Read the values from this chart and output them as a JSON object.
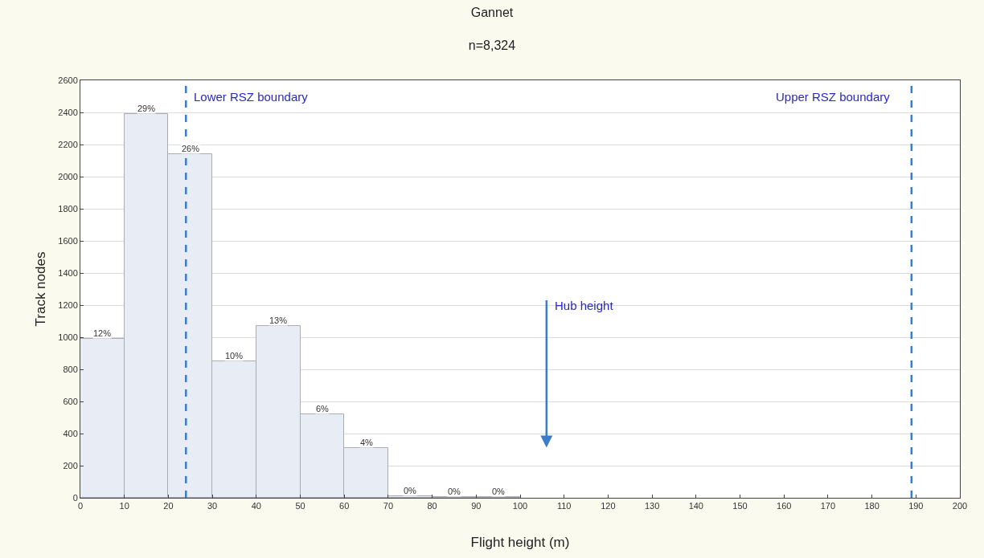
{
  "chart_data": {
    "type": "histogram",
    "title": "Gannet",
    "subtitle": "n=8,324",
    "xlabel": "Flight height (m)",
    "ylabel": "Track nodes",
    "bins": [
      0,
      10,
      20,
      30,
      40,
      50,
      60,
      70,
      80,
      90,
      100
    ],
    "values": [
      990,
      2390,
      2140,
      850,
      1070,
      520,
      310,
      10,
      5,
      5
    ],
    "color": "#e8edf5",
    "xlim": [
      0,
      200
    ],
    "xticks": [
      0,
      10,
      20,
      30,
      40,
      50,
      60,
      70,
      80,
      90,
      100,
      110,
      120,
      130,
      140,
      150,
      160,
      170,
      180,
      190,
      200
    ],
    "ylim": [
      0,
      2600
    ],
    "yticks": [
      0,
      200,
      400,
      600,
      800,
      1000,
      1200,
      1400,
      1600,
      1800,
      2000,
      2200,
      2400,
      2600
    ],
    "grid": "y",
    "ref_lines": [
      {
        "axis": "x",
        "value": 24,
        "label": "Lower RSZ boundary",
        "color": "#3d7cc9",
        "line_style": "dashed"
      },
      {
        "axis": "x",
        "value": 189,
        "label": "Upper RSZ boundary",
        "color": "#3d7cc9",
        "line_style": "dashed"
      }
    ],
    "annotations": [
      "Hub height",
      {
        "text": "12%",
        "x": 5,
        "y": 990
      },
      {
        "text": "29%",
        "x": 15,
        "y": 2390
      },
      {
        "text": "26%",
        "x": 25,
        "y": 2140
      },
      {
        "text": "10%",
        "x": 35,
        "y": 850
      },
      {
        "text": "13%",
        "x": 45,
        "y": 1070
      },
      {
        "text": "6%",
        "x": 55,
        "y": 520
      },
      {
        "text": "4%",
        "x": 65,
        "y": 310
      },
      {
        "text": "0%",
        "x": 75,
        "y": 10
      },
      {
        "text": "0%",
        "x": 85,
        "y": 5
      },
      {
        "text": "0%",
        "x": 95,
        "y": 5
      }
    ]
  }
}
